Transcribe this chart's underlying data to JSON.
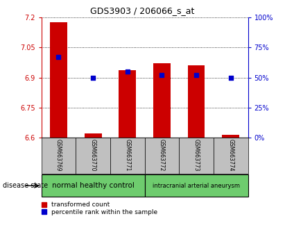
{
  "title": "GDS3903 / 206066_s_at",
  "samples": [
    "GSM663769",
    "GSM663770",
    "GSM663771",
    "GSM663772",
    "GSM663773",
    "GSM663774"
  ],
  "transformed_count": [
    7.175,
    6.62,
    6.935,
    6.97,
    6.96,
    6.615
  ],
  "percentile_rank": [
    67,
    50,
    55,
    52,
    52,
    50
  ],
  "ylim_left": [
    6.6,
    7.2
  ],
  "ylim_right": [
    0,
    100
  ],
  "yticks_left": [
    6.6,
    6.75,
    6.9,
    7.05,
    7.2
  ],
  "yticks_right": [
    0,
    25,
    50,
    75,
    100
  ],
  "groups": [
    {
      "label": "normal healthy control",
      "color": "#6ECC6E"
    },
    {
      "label": "intracranial arterial aneurysm",
      "color": "#6ECC6E"
    }
  ],
  "bar_color": "#CC0000",
  "dot_color": "#0000CC",
  "bar_width": 0.5,
  "dot_size": 18,
  "left_axis_color": "#CC0000",
  "right_axis_color": "#0000CC",
  "disease_state_label": "disease state",
  "legend_bar_label": "transformed count",
  "legend_dot_label": "percentile rank within the sample",
  "tick_area_color": "#C0C0C0"
}
